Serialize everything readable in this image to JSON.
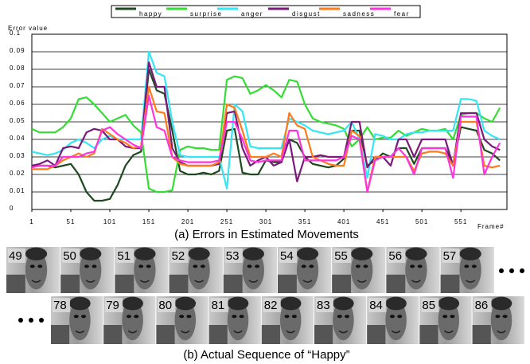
{
  "chart_data": {
    "type": "line",
    "caption": "(a) Errors in Estimated Movements",
    "xlabel": "Frame#",
    "ylabel": "Error value",
    "xlim": [
      1,
      610
    ],
    "ylim": [
      0,
      0.1
    ],
    "xticks": [
      1,
      51,
      101,
      151,
      201,
      251,
      301,
      351,
      401,
      451,
      501,
      551
    ],
    "yticks": [
      0,
      0.01,
      0.02,
      0.03,
      0.04,
      0.05,
      0.06,
      0.07,
      0.08,
      0.09,
      0.1
    ],
    "grid": true,
    "legend": "top",
    "x": [
      1,
      11,
      21,
      31,
      41,
      51,
      61,
      71,
      81,
      91,
      101,
      111,
      121,
      131,
      141,
      151,
      161,
      171,
      181,
      191,
      201,
      211,
      221,
      231,
      241,
      251,
      261,
      271,
      281,
      291,
      301,
      311,
      321,
      331,
      341,
      351,
      361,
      371,
      381,
      391,
      401,
      411,
      421,
      431,
      441,
      451,
      461,
      471,
      481,
      491,
      501,
      511,
      521,
      531,
      541,
      551,
      561,
      571,
      581,
      591,
      601
    ],
    "series": [
      {
        "name": "happy",
        "color": "#1f4a1f",
        "values": [
          0.025,
          0.025,
          0.025,
          0.024,
          0.025,
          0.026,
          0.02,
          0.01,
          0.005,
          0.005,
          0.006,
          0.014,
          0.025,
          0.031,
          0.033,
          0.08,
          0.068,
          0.066,
          0.045,
          0.022,
          0.02,
          0.02,
          0.021,
          0.02,
          0.022,
          0.045,
          0.046,
          0.021,
          0.02,
          0.02,
          0.028,
          0.027,
          0.027,
          0.04,
          0.038,
          0.03,
          0.026,
          0.025,
          0.024,
          0.025,
          0.029,
          0.045,
          0.045,
          0.025,
          0.028,
          0.032,
          0.03,
          0.035,
          0.035,
          0.026,
          0.035,
          0.035,
          0.035,
          0.035,
          0.026,
          0.047,
          0.046,
          0.045,
          0.034,
          0.032,
          0.028
        ]
      },
      {
        "name": "surprise",
        "color": "#33dd33",
        "values": [
          0.046,
          0.044,
          0.044,
          0.044,
          0.047,
          0.052,
          0.063,
          0.064,
          0.06,
          0.055,
          0.05,
          0.052,
          0.054,
          0.048,
          0.044,
          0.012,
          0.01,
          0.01,
          0.011,
          0.034,
          0.036,
          0.035,
          0.035,
          0.034,
          0.034,
          0.074,
          0.076,
          0.075,
          0.066,
          0.068,
          0.071,
          0.068,
          0.064,
          0.074,
          0.073,
          0.06,
          0.052,
          0.05,
          0.049,
          0.048,
          0.046,
          0.036,
          0.04,
          0.047,
          0.04,
          0.041,
          0.041,
          0.045,
          0.042,
          0.044,
          0.046,
          0.045,
          0.045,
          0.046,
          0.04,
          0.054,
          0.055,
          0.055,
          0.052,
          0.05,
          0.058
        ]
      },
      {
        "name": "anger",
        "color": "#33e6f5",
        "values": [
          0.033,
          0.032,
          0.031,
          0.032,
          0.034,
          0.038,
          0.04,
          0.038,
          0.035,
          0.04,
          0.042,
          0.04,
          0.04,
          0.04,
          0.04,
          0.09,
          0.078,
          0.076,
          0.05,
          0.031,
          0.03,
          0.03,
          0.03,
          0.03,
          0.03,
          0.012,
          0.06,
          0.056,
          0.036,
          0.035,
          0.035,
          0.035,
          0.035,
          0.052,
          0.05,
          0.048,
          0.045,
          0.044,
          0.043,
          0.044,
          0.045,
          0.05,
          0.04,
          0.018,
          0.043,
          0.042,
          0.04,
          0.04,
          0.043,
          0.044,
          0.044,
          0.045,
          0.045,
          0.045,
          0.045,
          0.063,
          0.063,
          0.062,
          0.045,
          0.042,
          0.04
        ]
      },
      {
        "name": "disgust",
        "color": "#7a1a7a",
        "values": [
          0.025,
          0.026,
          0.028,
          0.025,
          0.035,
          0.036,
          0.035,
          0.044,
          0.046,
          0.045,
          0.04,
          0.04,
          0.036,
          0.035,
          0.035,
          0.084,
          0.07,
          0.07,
          0.035,
          0.027,
          0.025,
          0.025,
          0.025,
          0.025,
          0.026,
          0.055,
          0.056,
          0.035,
          0.025,
          0.028,
          0.03,
          0.025,
          0.027,
          0.04,
          0.016,
          0.03,
          0.03,
          0.031,
          0.03,
          0.03,
          0.03,
          0.05,
          0.05,
          0.024,
          0.03,
          0.03,
          0.025,
          0.04,
          0.04,
          0.03,
          0.04,
          0.04,
          0.04,
          0.04,
          0.025,
          0.055,
          0.055,
          0.055,
          0.04,
          0.036,
          0.034
        ]
      },
      {
        "name": "sadness",
        "color": "#ff7a1a",
        "values": [
          0.023,
          0.023,
          0.023,
          0.025,
          0.028,
          0.03,
          0.032,
          0.03,
          0.032,
          0.046,
          0.043,
          0.04,
          0.038,
          0.035,
          0.036,
          0.07,
          0.056,
          0.055,
          0.03,
          0.026,
          0.025,
          0.025,
          0.025,
          0.025,
          0.027,
          0.06,
          0.058,
          0.045,
          0.03,
          0.03,
          0.03,
          0.032,
          0.03,
          0.055,
          0.048,
          0.046,
          0.03,
          0.028,
          0.026,
          0.025,
          0.025,
          0.045,
          0.042,
          0.01,
          0.03,
          0.03,
          0.03,
          0.03,
          0.03,
          0.022,
          0.032,
          0.033,
          0.033,
          0.032,
          0.025,
          0.05,
          0.05,
          0.05,
          0.025,
          0.024,
          0.025
        ]
      },
      {
        "name": "fear",
        "color": "#ff33dd",
        "values": [
          0.024,
          0.025,
          0.025,
          0.025,
          0.03,
          0.03,
          0.03,
          0.032,
          0.033,
          0.045,
          0.047,
          0.043,
          0.04,
          0.037,
          0.035,
          0.065,
          0.047,
          0.045,
          0.03,
          0.028,
          0.027,
          0.027,
          0.027,
          0.027,
          0.028,
          0.05,
          0.05,
          0.04,
          0.028,
          0.027,
          0.028,
          0.028,
          0.028,
          0.045,
          0.045,
          0.028,
          0.028,
          0.028,
          0.028,
          0.028,
          0.03,
          0.042,
          0.04,
          0.01,
          0.028,
          0.03,
          0.03,
          0.035,
          0.03,
          0.02,
          0.035,
          0.035,
          0.035,
          0.035,
          0.018,
          0.053,
          0.053,
          0.053,
          0.02,
          0.03,
          0.038
        ]
      }
    ]
  },
  "image_strip": {
    "caption": "(b) Actual Sequence of “Happy”",
    "rows": [
      [
        "49",
        "50",
        "51",
        "52",
        "53",
        "54",
        "55",
        "56",
        "57"
      ],
      [
        "78",
        "79",
        "80",
        "81",
        "82",
        "83",
        "84",
        "85",
        "86"
      ]
    ]
  }
}
